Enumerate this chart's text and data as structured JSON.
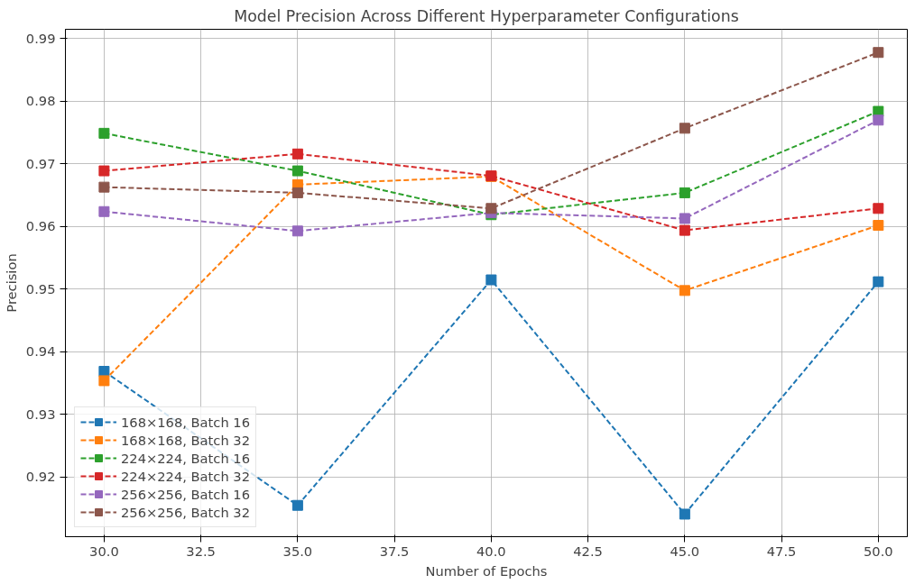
{
  "chart_data": {
    "type": "line",
    "title": "Model Precision Across Different Hyperparameter Configurations",
    "xlabel": "Number of Epochs",
    "ylabel": "Precision",
    "x": [
      30,
      35,
      40,
      45,
      50
    ],
    "series": [
      {
        "name": "168×168, Batch 16",
        "color": "#1f77b4",
        "values": [
          0.9369,
          0.9155,
          0.9515,
          0.9141,
          0.9512
        ]
      },
      {
        "name": "168×168, Batch 32",
        "color": "#ff7f0e",
        "values": [
          0.9354,
          0.9667,
          0.968,
          0.9498,
          0.9602
        ]
      },
      {
        "name": "224×224, Batch 16",
        "color": "#2ca02c",
        "values": [
          0.9749,
          0.9689,
          0.9619,
          0.9654,
          0.9784
        ]
      },
      {
        "name": "224×224, Batch 32",
        "color": "#d62728",
        "values": [
          0.9689,
          0.9716,
          0.9681,
          0.9594,
          0.9629
        ]
      },
      {
        "name": "256×256, Batch 16",
        "color": "#9467bd",
        "values": [
          0.9624,
          0.9593,
          0.9622,
          0.9613,
          0.977
        ]
      },
      {
        "name": "256×256, Batch 32",
        "color": "#8c564b",
        "values": [
          0.9663,
          0.9654,
          0.9629,
          0.9757,
          0.9878
        ]
      }
    ],
    "xlim": [
      29,
      50.75
    ],
    "ylim": [
      0.9105,
      0.9915
    ],
    "xticks": [
      {
        "value": 30,
        "label": "30.0"
      },
      {
        "value": 32.5,
        "label": "32.5"
      },
      {
        "value": 35,
        "label": "35.0"
      },
      {
        "value": 37.5,
        "label": "37.5"
      },
      {
        "value": 40,
        "label": "40.0"
      },
      {
        "value": 42.5,
        "label": "42.5"
      },
      {
        "value": 45,
        "label": "45.0"
      },
      {
        "value": 47.5,
        "label": "47.5"
      },
      {
        "value": 50,
        "label": "50.0"
      }
    ],
    "yticks": [
      0.92,
      0.93,
      0.94,
      0.95,
      0.96,
      0.97,
      0.98,
      0.99
    ],
    "grid": true,
    "legend": "bottom left",
    "marker": "square",
    "line_style": "dashed"
  }
}
